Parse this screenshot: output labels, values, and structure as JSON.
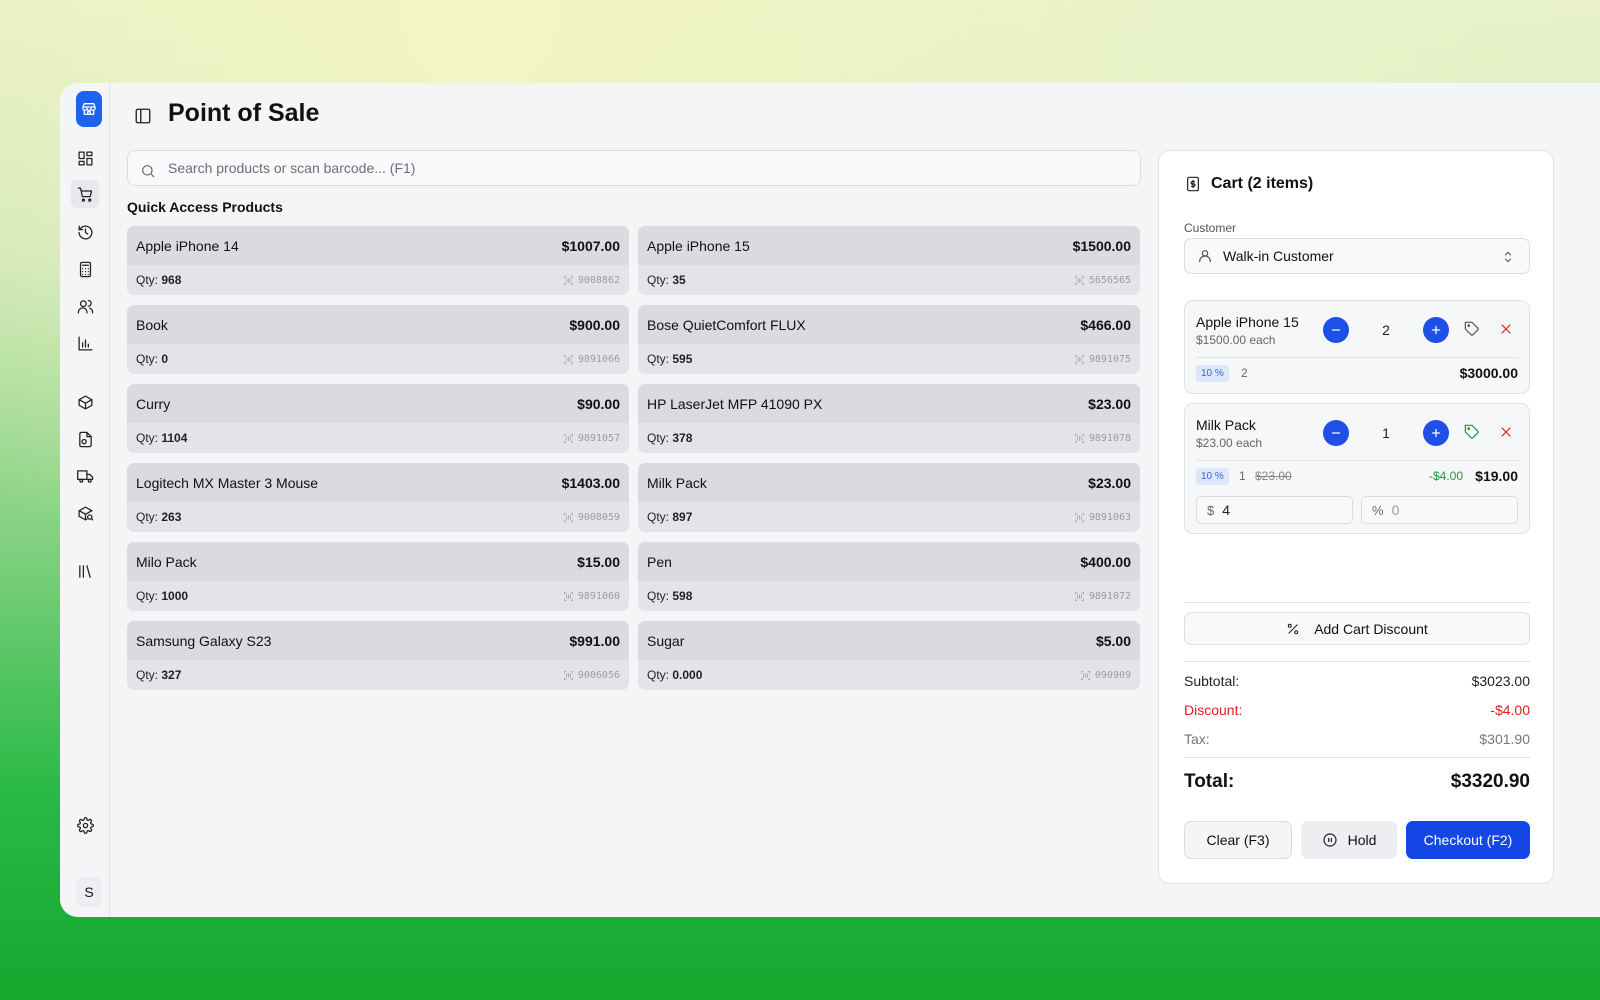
{
  "app": {
    "title": "Point of Sale"
  },
  "sidebar": {
    "items": [
      {
        "name": "dashboard",
        "icon": "dashboard-icon"
      },
      {
        "name": "pos",
        "icon": "cart-icon",
        "active": true
      },
      {
        "name": "history",
        "icon": "history-icon"
      },
      {
        "name": "calculator",
        "icon": "calculator-icon"
      },
      {
        "name": "customers",
        "icon": "users-icon"
      },
      {
        "name": "reports",
        "icon": "chart-icon"
      },
      {
        "name": "products",
        "icon": "box-icon"
      },
      {
        "name": "documents",
        "icon": "file-icon"
      },
      {
        "name": "delivery",
        "icon": "truck-icon"
      },
      {
        "name": "inventory-search",
        "icon": "package-search-icon"
      },
      {
        "name": "library",
        "icon": "library-icon"
      },
      {
        "name": "settings",
        "icon": "gear-icon"
      }
    ],
    "avatar": "S"
  },
  "search": {
    "placeholder": "Search products or scan barcode... (F1)"
  },
  "quick_access": {
    "title": "Quick Access Products",
    "qty_label": "Qty: ",
    "products": [
      {
        "name": "Apple iPhone 14",
        "price": "$1007.00",
        "qty": "968",
        "code": "9008862"
      },
      {
        "name": "Apple iPhone 15",
        "price": "$1500.00",
        "qty": "35",
        "code": "5656565"
      },
      {
        "name": "Book",
        "price": "$900.00",
        "qty": "0",
        "code": "9891066"
      },
      {
        "name": "Bose QuietComfort FLUX",
        "price": "$466.00",
        "qty": "595",
        "code": "9891075"
      },
      {
        "name": "Curry",
        "price": "$90.00",
        "qty": "1104",
        "code": "9891057"
      },
      {
        "name": "HP LaserJet MFP 41090 PX",
        "price": "$23.00",
        "qty": "378",
        "code": "9891078"
      },
      {
        "name": "Logitech MX Master 3 Mouse",
        "price": "$1403.00",
        "qty": "263",
        "code": "9008059"
      },
      {
        "name": "Milk Pack",
        "price": "$23.00",
        "qty": "897",
        "code": "9891063"
      },
      {
        "name": "Milo Pack",
        "price": "$15.00",
        "qty": "1000",
        "code": "9891060"
      },
      {
        "name": "Pen",
        "price": "$400.00",
        "qty": "598",
        "code": "9891072"
      },
      {
        "name": "Samsung Galaxy S23",
        "price": "$991.00",
        "qty": "327",
        "code": "9006056"
      },
      {
        "name": "Sugar",
        "price": "$5.00",
        "qty": "0.000",
        "code": "090909"
      }
    ]
  },
  "cart": {
    "title": "Cart (2 items)",
    "customer_label": "Customer",
    "customer_value": "Walk-in Customer",
    "items": [
      {
        "name": "Apple iPhone 15",
        "each": "$1500.00 each",
        "qty": "2",
        "badge": "10 %",
        "qty2": "2",
        "total": "$3000.00",
        "tag_color": "#555555"
      },
      {
        "name": "Milk Pack",
        "each": "$23.00 each",
        "qty": "1",
        "badge": "10 %",
        "qty2": "1",
        "original": "$23.00",
        "discount": "-$4.00",
        "total": "$19.00",
        "tag_color": "#1a9a3c",
        "discount_fixed_prefix": "$",
        "discount_fixed_value": "4",
        "discount_pct_prefix": "%",
        "discount_pct_value": "0"
      }
    ],
    "add_discount_label": "Add Cart Discount",
    "subtotal_label": "Subtotal:",
    "subtotal": "$3023.00",
    "discount_label": "Discount:",
    "discount": "-$4.00",
    "tax_label": "Tax:",
    "tax": "$301.90",
    "total_label": "Total:",
    "total": "$3320.90",
    "clear_label": "Clear (F3)",
    "hold_label": "Hold",
    "checkout_label": "Checkout (F2)"
  },
  "colors": {
    "accent": "#1447e6",
    "danger": "#e11d1d",
    "success": "#1a9a3c"
  }
}
